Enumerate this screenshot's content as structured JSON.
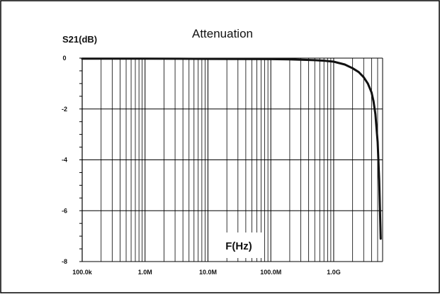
{
  "chart_data": {
    "type": "line",
    "title": "Attenuation",
    "ylabel": "S21(dB)",
    "xlabel": "F(Hz)",
    "xscale": "log",
    "xlim": [
      100000,
      6000000000
    ],
    "ylim": [
      -8,
      0
    ],
    "grid": true,
    "x_tick_labels": [
      "100.0k",
      "1.0M",
      "10.0M",
      "100.0M",
      "1.0G"
    ],
    "x_tick_values": [
      100000,
      1000000,
      10000000,
      100000000,
      1000000000
    ],
    "y_tick_labels": [
      "0",
      "-2",
      "-4",
      "-6",
      "-8"
    ],
    "y_tick_values": [
      0,
      -2,
      -4,
      -6,
      -8
    ],
    "series": [
      {
        "color": "#111111",
        "x": [
          100000,
          1000000,
          10000000,
          100000000,
          200000000,
          300000000,
          500000000,
          700000000,
          1000000000,
          1500000000,
          2000000000,
          2500000000,
          3000000000,
          3500000000,
          4000000000,
          4300000000,
          4600000000,
          5000000000,
          5300000000,
          5600000000
        ],
        "y": [
          -0.02,
          -0.02,
          -0.03,
          -0.04,
          -0.05,
          -0.06,
          -0.08,
          -0.1,
          -0.14,
          -0.25,
          -0.4,
          -0.55,
          -0.75,
          -1.0,
          -1.35,
          -1.7,
          -2.2,
          -3.3,
          -4.8,
          -7.1
        ]
      }
    ]
  }
}
